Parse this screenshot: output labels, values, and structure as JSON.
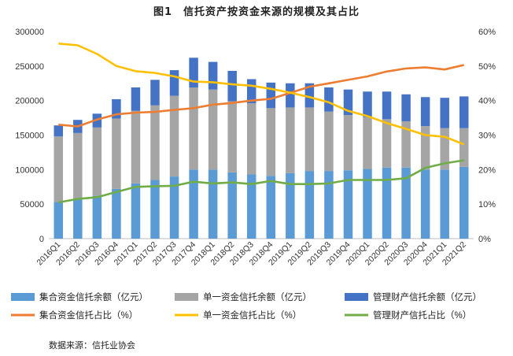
{
  "title": "图1　信托资产按资金来源的规模及其占比",
  "source": "数据来源：信托业协会",
  "chart_data": {
    "type": "bar",
    "stacked": true,
    "categories": [
      "2016Q1",
      "2016Q2",
      "2016Q3",
      "2016Q4",
      "2017Q1",
      "2017Q2",
      "2017Q3",
      "2017Q4",
      "2018Q1",
      "2018Q2",
      "2018Q3",
      "2018Q4",
      "2019Q1",
      "2019Q2",
      "2019Q3",
      "2019Q4",
      "2020Q1",
      "2020Q2",
      "2020Q3",
      "2020Q4",
      "2021Q1",
      "2021Q2"
    ],
    "y_left": {
      "ylim": [
        0,
        300000
      ],
      "ticks": [
        "0",
        "50000",
        "100000",
        "150000",
        "200000",
        "250000",
        "300000"
      ]
    },
    "y_right": {
      "ylim": [
        0,
        60
      ],
      "ticks": [
        "0%",
        "10%",
        "20%",
        "30%",
        "40%",
        "50%",
        "60%"
      ]
    },
    "grid": false,
    "legend_position": "bottom",
    "bar_series": [
      {
        "name": "集合资金信托余额（亿元）",
        "color": "#5b9bd5",
        "values": [
          53000,
          57000,
          62000,
          72000,
          80000,
          85000,
          90000,
          100000,
          100000,
          96000,
          93000,
          91000,
          95000,
          98000,
          98000,
          99000,
          101000,
          103000,
          103000,
          100000,
          100000,
          104000
        ]
      },
      {
        "name": "单一资金信托余额（亿元）",
        "color": "#a5a5a5",
        "values": [
          95000,
          96000,
          99000,
          102000,
          105000,
          108000,
          117000,
          119000,
          116000,
          103000,
          103000,
          98000,
          95000,
          92000,
          86000,
          80000,
          75000,
          70000,
          67000,
          63000,
          60000,
          56000
        ]
      },
      {
        "name": "管理财产信托余额（亿元）",
        "color": "#4472c4",
        "values": [
          16000,
          19000,
          20000,
          28000,
          34000,
          37000,
          37000,
          43000,
          40000,
          44000,
          35000,
          37000,
          35000,
          35000,
          35000,
          37000,
          37000,
          40000,
          39000,
          42000,
          44000,
          46000
        ]
      }
    ],
    "line_series": [
      {
        "name": "集合资金信托占比（%）",
        "color": "#ed7d31",
        "values": [
          33.0,
          32.5,
          34.5,
          36.0,
          36.5,
          36.7,
          37.3,
          37.8,
          38.8,
          39.3,
          40.0,
          40.5,
          42.2,
          44.0,
          45.0,
          46.0,
          47.0,
          48.4,
          49.3,
          49.6,
          49.0,
          50.3
        ]
      },
      {
        "name": "单一资金信托占比（%）",
        "color": "#ffc000",
        "values": [
          56.5,
          56.0,
          53.5,
          50.0,
          48.5,
          48.0,
          47.0,
          45.5,
          45.3,
          44.7,
          44.3,
          43.4,
          42.3,
          41.0,
          39.5,
          37.0,
          35.5,
          33.5,
          31.8,
          30.0,
          29.5,
          27.3
        ]
      },
      {
        "name": "管理财产信托占比（%）",
        "color": "#70ad47",
        "values": [
          10.5,
          11.5,
          12.0,
          13.5,
          15.0,
          15.2,
          15.3,
          16.5,
          16.0,
          16.3,
          15.8,
          16.7,
          15.8,
          15.8,
          16.0,
          17.0,
          17.0,
          17.0,
          17.5,
          20.5,
          21.8,
          22.7
        ]
      }
    ]
  }
}
